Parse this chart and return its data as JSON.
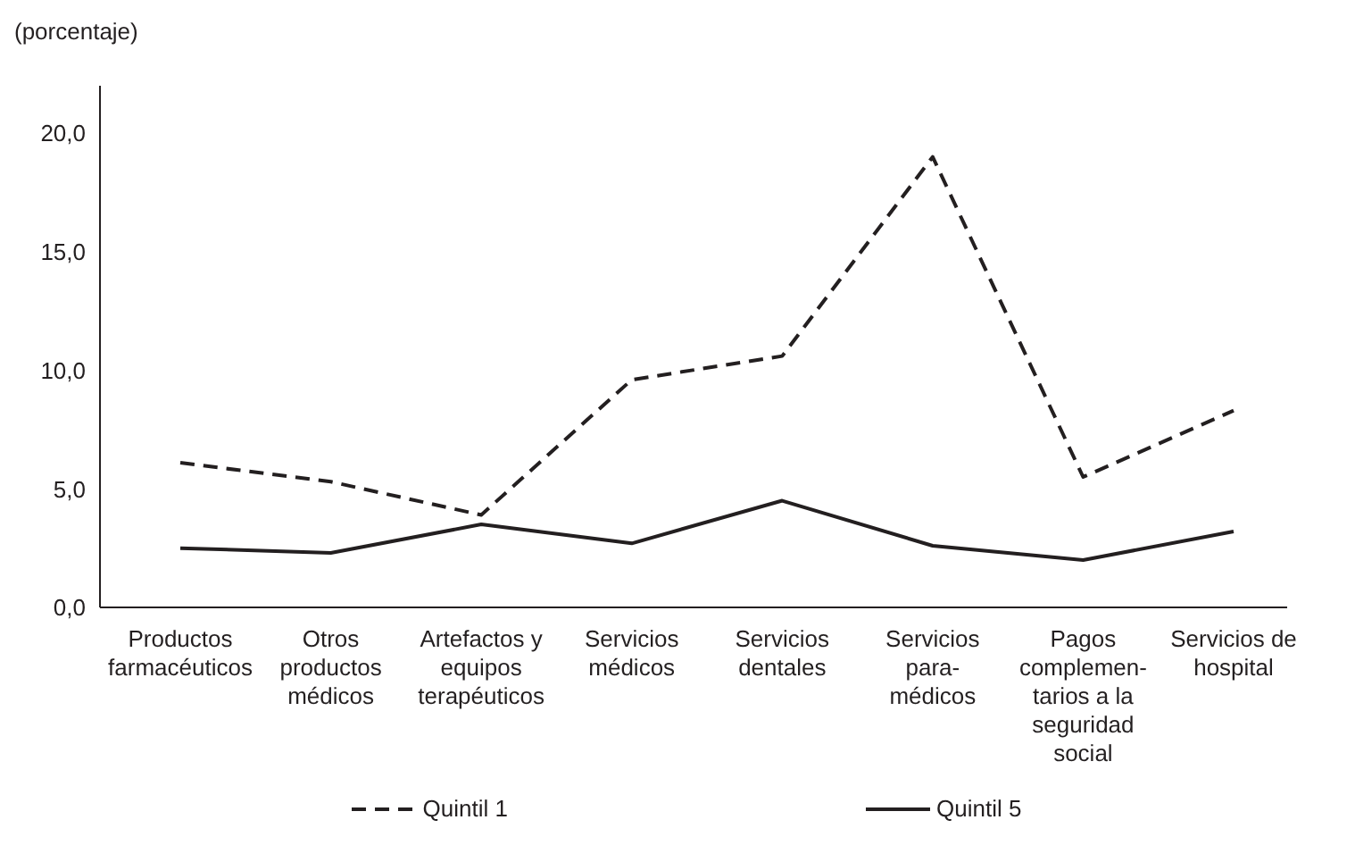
{
  "chart_data": {
    "type": "line",
    "ylabel": "(porcentaje)",
    "categories": [
      "Productos\nfarmacéuticos",
      "Otros\nproductos\nmédicos",
      "Artefactos y\nequipos\nterapéuticos",
      "Servicios\nmédicos",
      "Servicios\ndentales",
      "Servicios\npara-\nmédicos",
      "Pagos\ncomplemen-\ntarios a la\nseguridad\nsocial",
      "Servicios de\nhospital"
    ],
    "series": [
      {
        "name": "Quintil 1",
        "color": "#231f20",
        "line_style": "dashed",
        "values": [
          6.1,
          5.3,
          3.9,
          9.6,
          10.6,
          19.0,
          5.5,
          8.3
        ]
      },
      {
        "name": "Quintil 5",
        "color": "#231f20",
        "line_style": "solid",
        "values": [
          2.5,
          2.3,
          3.5,
          2.7,
          4.5,
          2.6,
          2.0,
          3.2
        ]
      }
    ],
    "ylim": [
      0,
      22
    ],
    "yticks": [
      {
        "value": 0,
        "label": "0,0"
      },
      {
        "value": 5,
        "label": "5,0"
      },
      {
        "value": 10,
        "label": "10,0"
      },
      {
        "value": 15,
        "label": "15,0"
      },
      {
        "value": 20,
        "label": "20,0"
      }
    ],
    "grid": false,
    "legend": "bottom",
    "marker": "none"
  }
}
